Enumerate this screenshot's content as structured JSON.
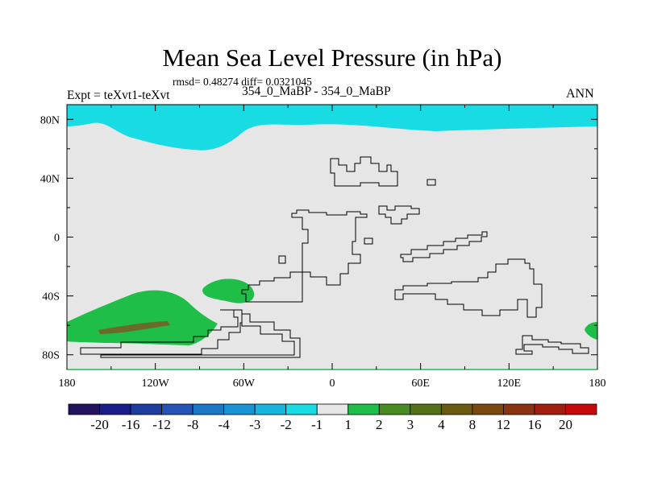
{
  "header": {
    "title": "Mean Sea Level Pressure (in hPa)",
    "stats": "rmsd= 0.48274 diff= 0.0321045",
    "experiment": "Expt = teXvt1-teXvt",
    "case_label": "354_0_MaBP - 354_0_MaBP",
    "season": "ANN"
  },
  "chart_data": {
    "type": "contour-map",
    "title": "Mean Sea Level Pressure (in hPa)",
    "xlabel": "",
    "ylabel": "",
    "xlim": [
      -180,
      180
    ],
    "ylim": [
      -90,
      90
    ],
    "x_ticks": [
      {
        "value": -180,
        "label": "180"
      },
      {
        "value": -120,
        "label": "120W"
      },
      {
        "value": -60,
        "label": "60W"
      },
      {
        "value": 0,
        "label": "0"
      },
      {
        "value": 60,
        "label": "60E"
      },
      {
        "value": 120,
        "label": "120E"
      },
      {
        "value": 180,
        "label": "180"
      }
    ],
    "y_ticks": [
      {
        "value": 80,
        "label": "80N"
      },
      {
        "value": 40,
        "label": "40N"
      },
      {
        "value": 0,
        "label": "0"
      },
      {
        "value": -40,
        "label": "40S"
      },
      {
        "value": -80,
        "label": "80S"
      }
    ],
    "background_value_range": "-1 to 1",
    "colorbar": {
      "colors": [
        "#24135e",
        "#1b1c8c",
        "#1e3da1",
        "#2454b5",
        "#1d77c9",
        "#1a93d6",
        "#19b3de",
        "#19dbe3",
        "#e6e6e6",
        "#1fbe49",
        "#4a8a22",
        "#55701a",
        "#6a5a12",
        "#7a4910",
        "#8a3310",
        "#a11e10",
        "#c40a0a"
      ],
      "labels": [
        "-20",
        "-16",
        "-12",
        "-8",
        "-4",
        "-3",
        "-2",
        "-1",
        "1",
        "2",
        "3",
        "4",
        "8",
        "12",
        "16",
        "20"
      ]
    },
    "regions": [
      {
        "name": "northern-polar-low",
        "range": "-2 to -1",
        "color": "#19dbe3",
        "lon_span": [
          -180,
          180
        ],
        "lat_span": [
          68,
          90
        ]
      },
      {
        "name": "southern-pacific-high",
        "range": "1 to 2",
        "color": "#1fbe49",
        "lon_span": [
          -180,
          -76
        ],
        "lat_span": [
          -73,
          -35
        ]
      },
      {
        "name": "southern-pacific-core",
        "range": "3 to 4",
        "color": "#6a6a2a",
        "lon_span": [
          -162,
          -112
        ],
        "lat_span": [
          -66,
          -60
        ]
      },
      {
        "name": "south-atlantic-high",
        "range": "1 to 2",
        "color": "#1fbe49",
        "lon_span": [
          -90,
          -52
        ],
        "lat_span": [
          -45,
          -27
        ]
      },
      {
        "name": "south-indian-edge-high",
        "range": "1 to 2",
        "color": "#1fbe49",
        "lon_span": [
          172,
          180
        ],
        "lat_span": [
          -70,
          -57
        ]
      }
    ]
  }
}
